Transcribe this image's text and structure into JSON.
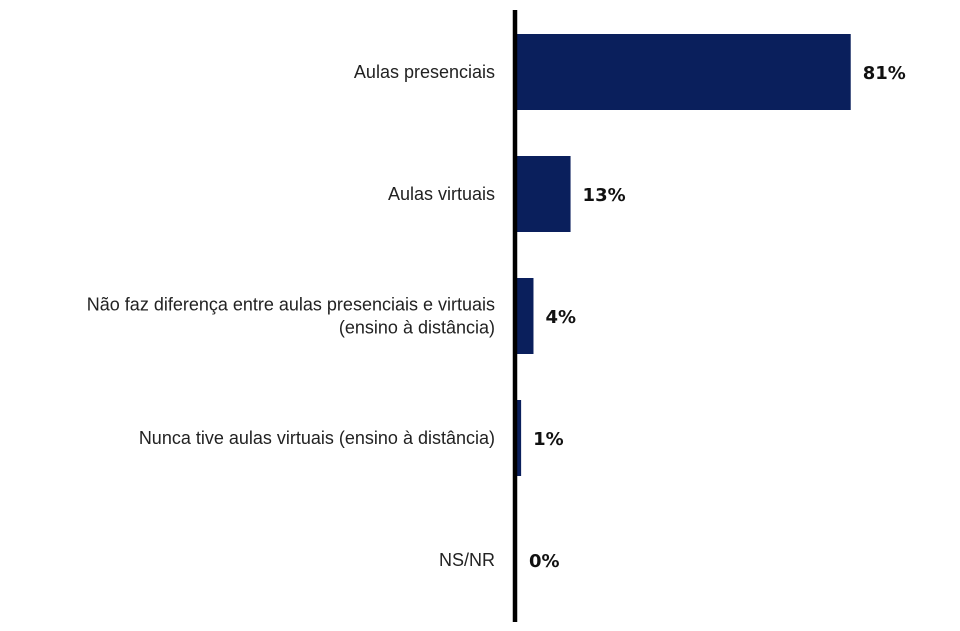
{
  "colors": {
    "bar": "#0a1f5c",
    "axis": "#000000",
    "text": "#222222"
  },
  "chart_data": {
    "type": "bar",
    "orientation": "horizontal",
    "categories": [
      [
        "Aulas presenciais"
      ],
      [
        "Aulas virtuais"
      ],
      [
        "Não faz diferença entre aulas presenciais e virtuais",
        "(ensino à distância)"
      ],
      [
        "Nunca tive aulas virtuais (ensino à distância)"
      ],
      [
        "NS/NR"
      ]
    ],
    "values": [
      81,
      13,
      4,
      1,
      0
    ],
    "value_labels": [
      "81%",
      "13%",
      "4%",
      "1%",
      "0%"
    ],
    "xlim": [
      0,
      100
    ],
    "grid": false,
    "legend": "none"
  }
}
